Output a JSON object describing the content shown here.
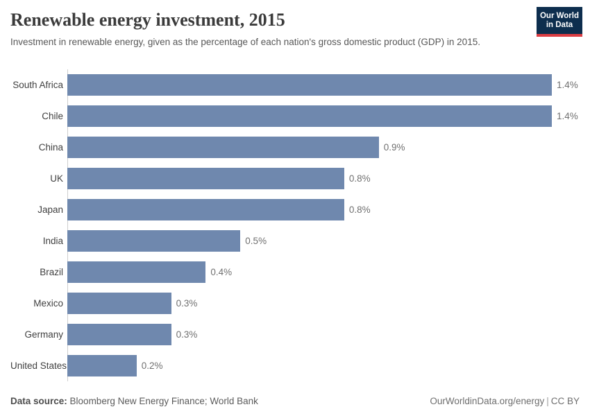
{
  "header": {
    "title": "Renewable energy investment, 2015",
    "subtitle": "Investment in renewable energy, given as the percentage of each nation's gross domestic product (GDP) in 2015."
  },
  "logo": {
    "line1": "Our World",
    "line2": "in Data",
    "background": "#0d2e4e",
    "accent": "#dc3d43"
  },
  "chart_data": {
    "type": "bar",
    "orientation": "horizontal",
    "title": "Renewable energy investment, 2015",
    "categories": [
      "South Africa",
      "Chile",
      "China",
      "UK",
      "Japan",
      "India",
      "Brazil",
      "Mexico",
      "Germany",
      "United States"
    ],
    "values": [
      1.4,
      1.4,
      0.9,
      0.8,
      0.8,
      0.5,
      0.4,
      0.3,
      0.3,
      0.2
    ],
    "value_labels": [
      "1.4%",
      "1.4%",
      "0.9%",
      "0.8%",
      "0.8%",
      "0.5%",
      "0.4%",
      "0.3%",
      "0.3%",
      "0.2%"
    ],
    "xlim": [
      0,
      1.4
    ],
    "bar_color": "#6f88ae",
    "grid": false,
    "legend": false
  },
  "footer": {
    "source_label": "Data source:",
    "source_value": "Bloomberg New Energy Finance; World Bank",
    "site": "OurWorldinData.org/energy",
    "separator": "|",
    "license": "CC BY"
  }
}
